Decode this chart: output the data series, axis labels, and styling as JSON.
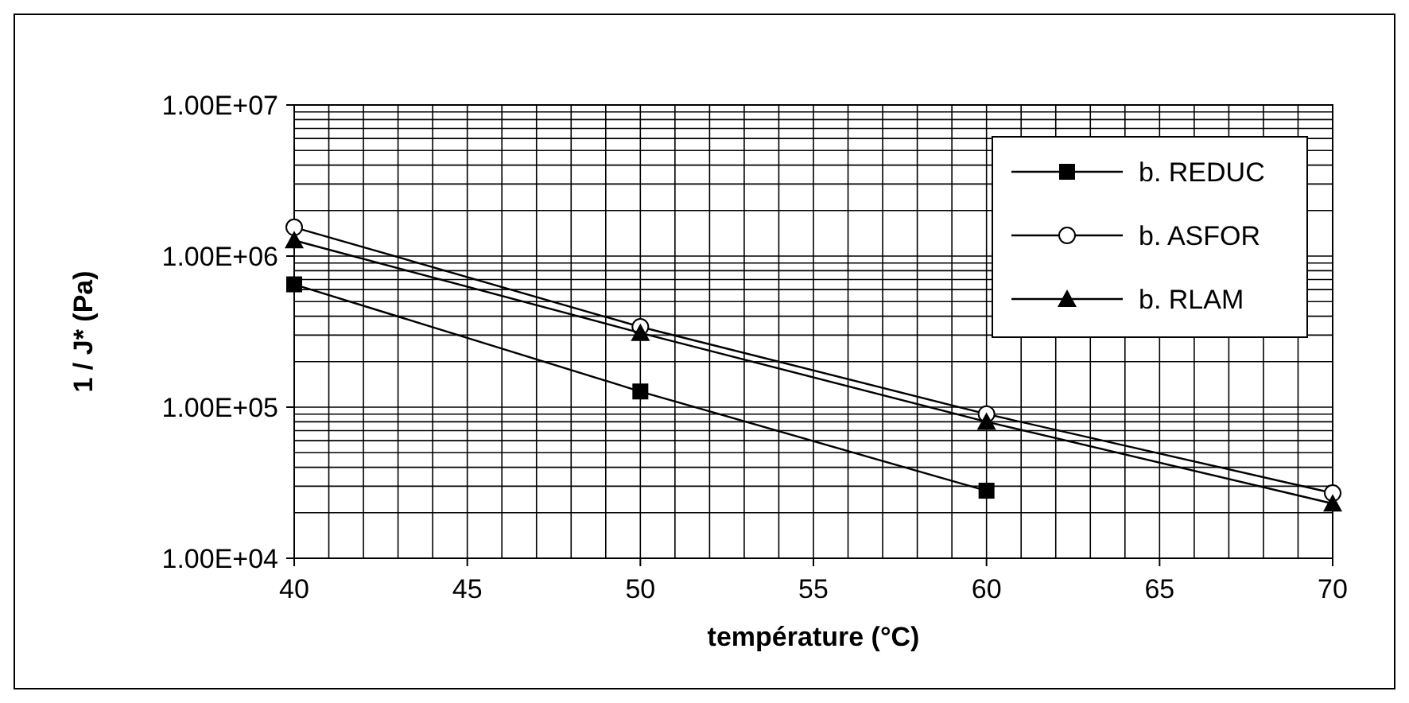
{
  "chart_data": {
    "type": "line",
    "xlabel": "température (°C)",
    "ylabel": "1 / J* (Pa)",
    "xlim": [
      40,
      70
    ],
    "xticks": [
      40,
      45,
      50,
      55,
      60,
      65,
      70
    ],
    "ylim": [
      10000,
      10000000
    ],
    "yticks": [
      {
        "value": 10000,
        "label": "1.00E+04"
      },
      {
        "value": 100000,
        "label": "1.00E+05"
      },
      {
        "value": 1000000,
        "label": "1.00E+06"
      },
      {
        "value": 10000000,
        "label": "1.00E+07"
      }
    ],
    "log": "y",
    "grid": true,
    "legend": "top right",
    "line_style": "solid",
    "series": [
      {
        "name": "b. REDUC",
        "color": "#000000",
        "marker": "square",
        "x": [
          40,
          50,
          60
        ],
        "values": [
          650000,
          127000,
          28000
        ]
      },
      {
        "name": "b. ASFOR",
        "color": "#000000",
        "marker": "circle",
        "x": [
          40,
          50,
          60,
          70
        ],
        "values": [
          1550000,
          340000,
          90000,
          27000
        ]
      },
      {
        "name": "b. RLAM",
        "color": "#000000",
        "marker": "triangle",
        "x": [
          40,
          50,
          60,
          70
        ],
        "values": [
          1270000,
          310000,
          80000,
          23000
        ]
      }
    ]
  }
}
